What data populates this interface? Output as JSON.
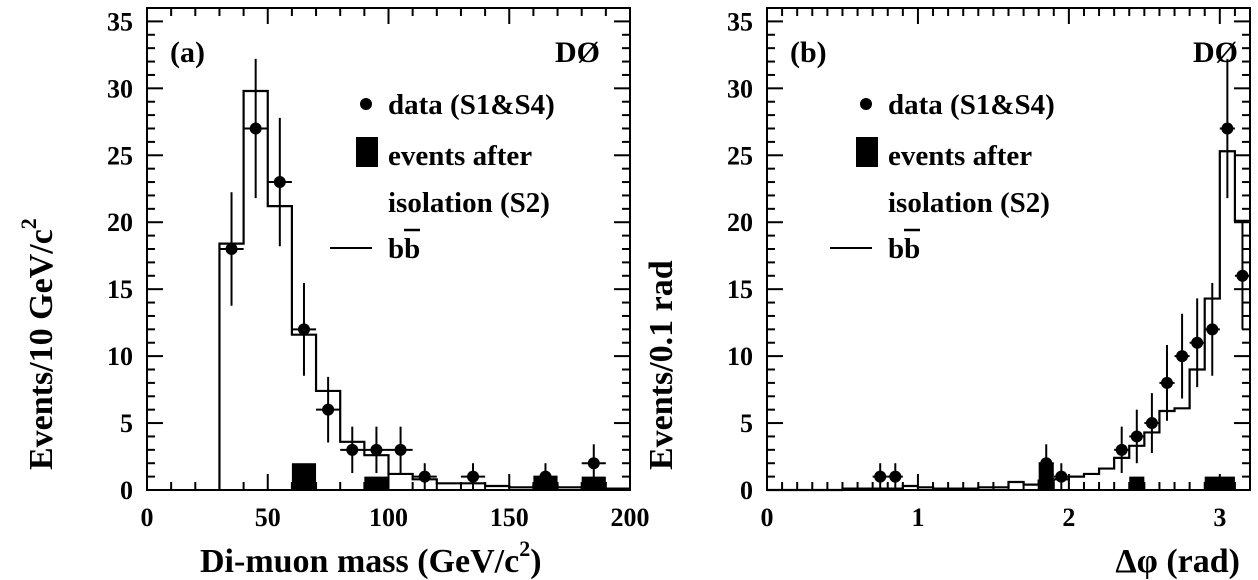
{
  "chart_data": [
    {
      "type": "bar",
      "panel_label": "(a)",
      "experiment": "DØ",
      "xlabel": "Di-muon mass (GeV/c",
      "xlabel_sup": "2",
      "xlabel_end": ")",
      "ylabel": "Events/10 GeV/c",
      "ylabel_sup": "2",
      "xlim": [
        0,
        200
      ],
      "ylim": [
        0,
        36
      ],
      "xticks": [
        "0",
        "50",
        "100",
        "150",
        "200"
      ],
      "yticks": [
        "0",
        "5",
        "10",
        "15",
        "20",
        "25",
        "30",
        "35"
      ],
      "legend": {
        "data": "data (S1&S4)",
        "iso_line1": "events after",
        "iso_line2": "isolation (S2)",
        "mc": "bb"
      },
      "series": [
        {
          "kind": "points",
          "x": [
            35,
            45,
            55,
            65,
            75,
            85,
            95,
            105,
            115,
            135,
            165,
            185
          ],
          "y": [
            18,
            27,
            23,
            12,
            6,
            3,
            3,
            3,
            1,
            1,
            1,
            2
          ]
        },
        {
          "kind": "histogram",
          "bin_width": 10,
          "x": [
            35,
            45,
            55,
            65,
            75,
            85,
            95,
            105,
            115,
            125,
            135,
            145,
            155,
            165,
            175,
            185,
            195
          ],
          "y": [
            18.4,
            29.8,
            21.2,
            11.6,
            7.4,
            3.6,
            2.6,
            1.2,
            0.8,
            0.5,
            0.5,
            0.3,
            0.2,
            0.3,
            0.2,
            0.1,
            0.1
          ]
        },
        {
          "kind": "filled",
          "bin_width": 10,
          "x": [
            65,
            95,
            165,
            185
          ],
          "y": [
            2,
            1,
            1,
            1
          ]
        }
      ]
    },
    {
      "type": "bar",
      "panel_label": "(b)",
      "experiment": "DØ",
      "xlabel": "Δφ (rad)",
      "ylabel": "Events/0.1 rad",
      "xlim": [
        0,
        3.2
      ],
      "ylim": [
        0,
        36
      ],
      "xticks": [
        "0",
        "1",
        "2",
        "3"
      ],
      "yticks": [
        "0",
        "5",
        "10",
        "15",
        "20",
        "25",
        "30",
        "35"
      ],
      "legend": {
        "data": "data (S1&S4)",
        "iso_line1": "events after",
        "iso_line2": "isolation (S2)",
        "mc": "bb"
      },
      "series": [
        {
          "kind": "points",
          "x": [
            0.75,
            0.85,
            1.85,
            1.95,
            2.35,
            2.45,
            2.55,
            2.65,
            2.75,
            2.85,
            2.95,
            3.05,
            3.15
          ],
          "y": [
            1,
            1,
            2,
            1,
            3,
            4,
            5,
            8,
            10,
            11,
            12,
            27,
            16
          ]
        },
        {
          "kind": "histogram",
          "bin_width": 0.1,
          "x": [
            0.05,
            0.15,
            0.25,
            0.35,
            0.45,
            0.55,
            0.65,
            0.75,
            0.85,
            0.95,
            1.05,
            1.15,
            1.25,
            1.35,
            1.45,
            1.55,
            1.65,
            1.75,
            1.85,
            1.95,
            2.05,
            2.15,
            2.25,
            2.35,
            2.45,
            2.55,
            2.65,
            2.75,
            2.85,
            2.95,
            3.05,
            3.15
          ],
          "y": [
            0,
            0,
            0,
            0,
            0,
            0.1,
            0.1,
            0.1,
            0.1,
            0.3,
            0.2,
            0.1,
            0.1,
            0.1,
            0.2,
            0.2,
            0.6,
            0.4,
            0.7,
            0.8,
            1.0,
            1.2,
            1.6,
            2.4,
            3.3,
            4.3,
            5.9,
            6.1,
            9.0,
            14.3,
            25.3,
            20.1
          ]
        },
        {
          "kind": "filled",
          "bin_width": 0.1,
          "x": [
            1.85,
            2.45,
            3.0
          ],
          "y": [
            2,
            1,
            1
          ],
          "widths": [
            0.1,
            0.1,
            0.2
          ]
        }
      ]
    }
  ]
}
